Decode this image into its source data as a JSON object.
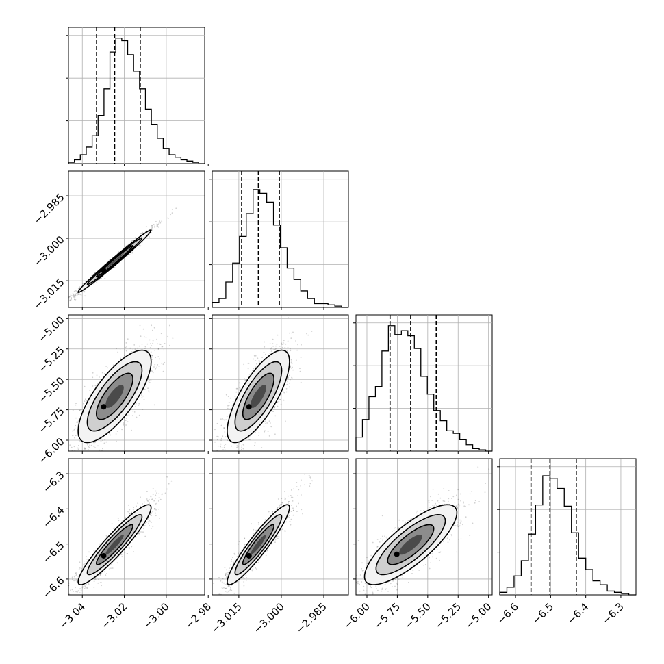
{
  "chart_data": {
    "type": "corner",
    "xlabel": "",
    "ylabel": "",
    "grid": true,
    "diagonal": [
      {
        "xlim": [
          -3.0466,
          -2.9817
        ],
        "dashed_lines": [
          -3.0332,
          -3.0246,
          -3.0124
        ],
        "heights": [
          0.01,
          0.03,
          0.07,
          0.13,
          0.22,
          0.38,
          0.59,
          0.88,
          0.99,
          0.97,
          0.86,
          0.73,
          0.59,
          0.43,
          0.31,
          0.2,
          0.12,
          0.07,
          0.05,
          0.03,
          0.02,
          0.01,
          0.0
        ]
      },
      {
        "xlim": [
          -3.0244,
          -2.9763
        ],
        "dashed_lines": [
          -3.014,
          -3.0081,
          -3.0007
        ],
        "heights": [
          0.04,
          0.07,
          0.2,
          0.35,
          0.56,
          0.74,
          0.93,
          0.9,
          0.83,
          0.65,
          0.47,
          0.31,
          0.22,
          0.13,
          0.07,
          0.03,
          0.03,
          0.02,
          0.01,
          0.0
        ]
      },
      {
        "xlim": [
          -6.09,
          -4.97
        ],
        "dashed_lines": [
          -5.81,
          -5.64,
          -5.43
        ],
        "heights": [
          0.11,
          0.25,
          0.43,
          0.51,
          0.79,
          0.99,
          0.92,
          0.95,
          0.91,
          0.81,
          0.59,
          0.45,
          0.32,
          0.24,
          0.16,
          0.14,
          0.09,
          0.05,
          0.02,
          0.01,
          0.0
        ]
      },
      {
        "xlim": [
          -6.645,
          -6.257
        ],
        "dashed_lines": [
          -6.556,
          -6.502,
          -6.427
        ],
        "heights": [
          0.02,
          0.06,
          0.15,
          0.27,
          0.48,
          0.71,
          0.94,
          0.92,
          0.84,
          0.7,
          0.49,
          0.29,
          0.2,
          0.11,
          0.08,
          0.03,
          0.02,
          0.01,
          0.0
        ]
      }
    ],
    "pairs": [
      {
        "row": 1,
        "col": 0,
        "mean": [
          -3.0246,
          -3.0081
        ],
        "sigma": [
          0.0087,
          0.0055
        ],
        "rho": 0.99
      },
      {
        "row": 2,
        "col": 0,
        "mean": [
          -3.0246,
          -5.64
        ],
        "sigma": [
          0.0087,
          0.19
        ],
        "rho": 0.75
      },
      {
        "row": 2,
        "col": 1,
        "mean": [
          -3.0081,
          -5.64
        ],
        "sigma": [
          0.0055,
          0.19
        ],
        "rho": 0.75
      },
      {
        "row": 3,
        "col": 0,
        "mean": [
          -3.0246,
          -6.502
        ],
        "sigma": [
          0.0087,
          0.057
        ],
        "rho": 0.93
      },
      {
        "row": 3,
        "col": 1,
        "mean": [
          -3.0081,
          -6.502
        ],
        "sigma": [
          0.0055,
          0.057
        ],
        "rho": 0.93
      },
      {
        "row": 3,
        "col": 2,
        "mean": [
          -5.64,
          -6.502
        ],
        "sigma": [
          0.19,
          0.057
        ],
        "rho": 0.8
      }
    ],
    "x_ticks": [
      [
        "−3.04",
        "−3.02",
        "−3.00",
        "−2.98"
      ],
      [
        "−3.015",
        "−3.000",
        "−2.985"
      ],
      [
        "−6.00",
        "−5.75",
        "−5.50",
        "−5.25",
        "−5.00"
      ],
      [
        "−6.6",
        "−6.5",
        "−6.4",
        "−6.3"
      ]
    ],
    "x_tick_values": [
      [
        -3.04,
        -3.02,
        -3.0,
        -2.98
      ],
      [
        -3.015,
        -3.0,
        -2.985
      ],
      [
        -6.0,
        -5.75,
        -5.5,
        -5.25,
        -5.0
      ],
      [
        -6.6,
        -6.5,
        -6.4,
        -6.3
      ]
    ],
    "y_ticks": [
      [],
      [
        "−2.985",
        "−3.000",
        "−3.015"
      ],
      [
        "−5.00",
        "−5.25",
        "−5.50",
        "−5.75",
        "−6.00"
      ],
      [
        "−6.3",
        "−6.4",
        "−6.5",
        "−6.6"
      ]
    ],
    "y_tick_values": [
      [],
      [
        -2.985,
        -3.0,
        -3.015
      ],
      [
        -5.0,
        -5.25,
        -5.5,
        -5.75,
        -6.0
      ],
      [
        -6.3,
        -6.4,
        -6.5,
        -6.6
      ]
    ]
  }
}
